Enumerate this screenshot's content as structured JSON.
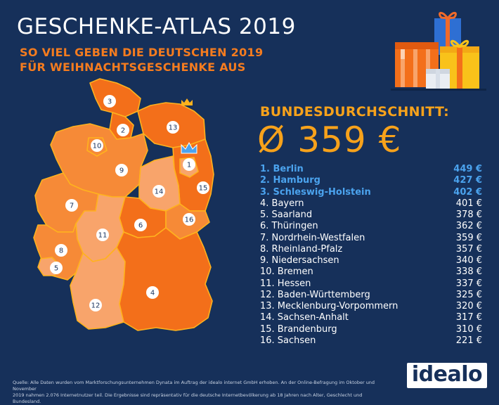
{
  "header": {
    "title": "GESCHENKE-ATLAS 2019",
    "subtitle_line1": "SO VIEL GEBEN DIE DEUTSCHEN 2019",
    "subtitle_line2": "FÜR WEIHNACHTSGESCHENKE AUS"
  },
  "average": {
    "label": "BUNDESDURCHSCHNITT:",
    "value": "Ø 359 €"
  },
  "colors": {
    "background": "#16305a",
    "accent": "#f7a21b",
    "top3": "#4ba3ee",
    "map_dark": "#f36f1a",
    "map_mid": "#f68a37",
    "map_light": "#f8a46b"
  },
  "chart_data": {
    "type": "table",
    "title": "GESCHENKE-ATLAS 2019",
    "rows": [
      {
        "rank": 1,
        "label": "1. Berlin",
        "value": 449,
        "display": "449 €"
      },
      {
        "rank": 2,
        "label": "2. Hamburg",
        "value": 427,
        "display": "427 €"
      },
      {
        "rank": 3,
        "label": "3. Schleswig-Holstein",
        "value": 402,
        "display": "402 €"
      },
      {
        "rank": 4,
        "label": "4. Bayern",
        "value": 401,
        "display": "401 €"
      },
      {
        "rank": 5,
        "label": "5. Saarland",
        "value": 378,
        "display": "378 €"
      },
      {
        "rank": 6,
        "label": "6. Thüringen",
        "value": 362,
        "display": "362 €"
      },
      {
        "rank": 7,
        "label": "7. Nordrhein-Westfalen",
        "value": 359,
        "display": "359 €"
      },
      {
        "rank": 8,
        "label": "8. Rheinland-Pfalz",
        "value": 357,
        "display": "357 €"
      },
      {
        "rank": 9,
        "label": "9. Niedersachsen",
        "value": 340,
        "display": "340 €"
      },
      {
        "rank": 10,
        "label": "10. Bremen",
        "value": 338,
        "display": "338 €"
      },
      {
        "rank": 11,
        "label": "11. Hessen",
        "value": 337,
        "display": "337 €"
      },
      {
        "rank": 12,
        "label": "12. Baden-Württemberg",
        "value": 325,
        "display": "325 €"
      },
      {
        "rank": 13,
        "label": "13. Mecklenburg-Vorpommern",
        "value": 320,
        "display": "320 €"
      },
      {
        "rank": 14,
        "label": "14. Sachsen-Anhalt",
        "value": 317,
        "display": "317 €"
      },
      {
        "rank": 15,
        "label": "15. Brandenburg",
        "value": 310,
        "display": "310 €"
      },
      {
        "rank": 16,
        "label": "16. Sachsen",
        "value": 221,
        "display": "221 €"
      }
    ]
  },
  "map_badges": [
    "1",
    "2",
    "3",
    "4",
    "5",
    "6",
    "7",
    "8",
    "9",
    "10",
    "11",
    "12",
    "13",
    "14",
    "15",
    "16"
  ],
  "icons": {
    "crown": "crown-icon",
    "gifts": "gift-boxes-icon"
  },
  "footer": {
    "source_line1": "Quelle: Alle Daten wurden vom Marktforschungsunternehmen Dynata im Auftrag der idealo internet GmbH erhoben. An der Online-Befragung im Oktober und November",
    "source_line2": "2019 nahmen 2.076 Internetnutzer teil. Die Ergebnisse sind repräsentativ für die deutsche Internetbevölkerung ab 18 Jahren nach Alter, Geschlecht und Bundesland.",
    "logo": "idealo"
  }
}
